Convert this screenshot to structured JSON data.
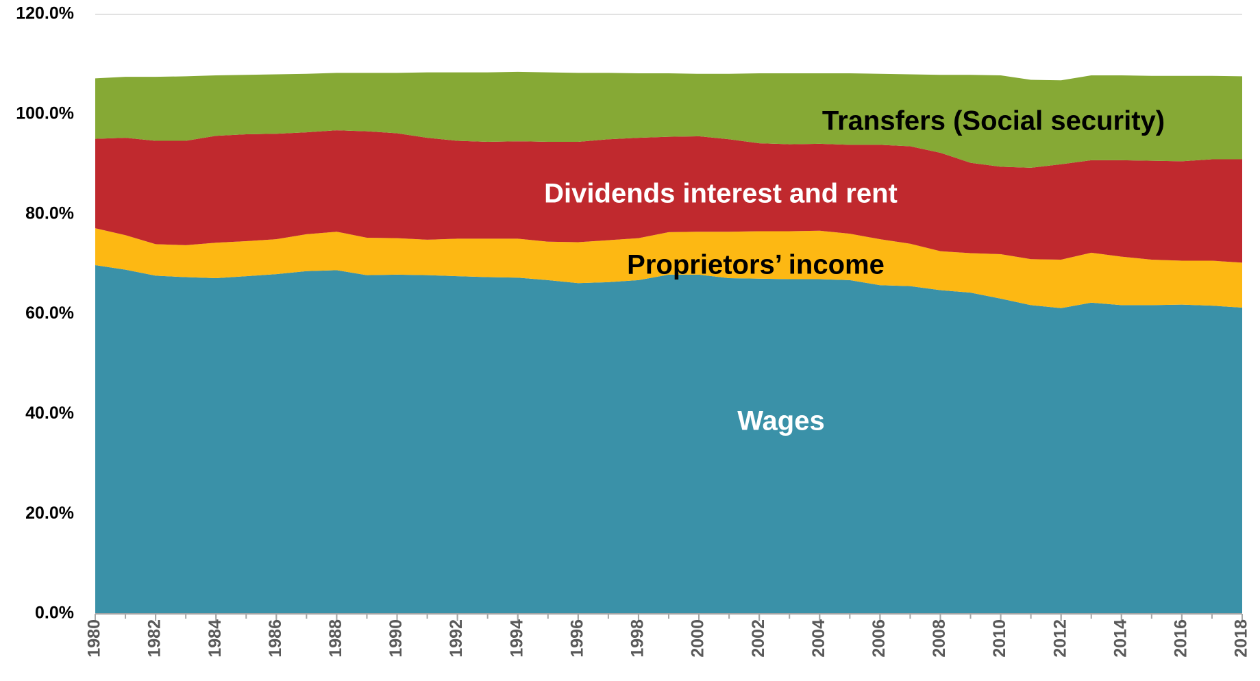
{
  "chart_data": {
    "type": "stacked-area",
    "x": [
      1980,
      1981,
      1982,
      1983,
      1984,
      1985,
      1986,
      1987,
      1988,
      1989,
      1990,
      1991,
      1992,
      1993,
      1994,
      1995,
      1996,
      1997,
      1998,
      1999,
      2000,
      2001,
      2002,
      2003,
      2004,
      2005,
      2006,
      2007,
      2008,
      2009,
      2010,
      2011,
      2012,
      2013,
      2014,
      2015,
      2016,
      2017,
      2018
    ],
    "series": [
      {
        "name": "Wages",
        "color": "#3a91a8",
        "label_color": "#ffffff",
        "values": [
          69.8,
          68.9,
          67.7,
          67.4,
          67.2,
          67.6,
          68.0,
          68.6,
          68.8,
          67.8,
          67.9,
          67.8,
          67.6,
          67.4,
          67.3,
          66.8,
          66.2,
          66.4,
          66.8,
          67.9,
          67.9,
          67.2,
          67.1,
          67.0,
          67.0,
          66.8,
          65.8,
          65.6,
          64.8,
          64.3,
          63.1,
          61.8,
          61.2,
          62.3,
          61.8,
          61.8,
          61.9,
          61.7,
          61.3
        ]
      },
      {
        "name": "Proprietors’ income",
        "color": "#fdb813",
        "label_color": "#000000",
        "values": [
          7.4,
          6.9,
          6.3,
          6.4,
          7.1,
          7.0,
          7.0,
          7.4,
          7.7,
          7.5,
          7.3,
          7.1,
          7.5,
          7.7,
          7.8,
          7.7,
          8.2,
          8.4,
          8.4,
          8.5,
          8.6,
          9.3,
          9.5,
          9.6,
          9.7,
          9.3,
          9.2,
          8.5,
          7.8,
          7.9,
          8.9,
          9.2,
          9.7,
          10.0,
          9.7,
          9.1,
          8.8,
          9.0,
          9.0
        ]
      },
      {
        "name": "Dividends interest and rent",
        "color": "#c0292e",
        "label_color": "#ffffff",
        "values": [
          17.9,
          19.5,
          20.7,
          20.9,
          21.4,
          21.4,
          21.1,
          20.4,
          20.3,
          21.3,
          21.0,
          20.4,
          19.6,
          19.4,
          19.5,
          20.0,
          20.1,
          20.2,
          20.1,
          19.1,
          19.1,
          18.5,
          17.6,
          17.4,
          17.4,
          17.8,
          18.9,
          19.5,
          19.7,
          18.1,
          17.5,
          18.3,
          19.1,
          18.5,
          19.3,
          19.8,
          19.9,
          20.3,
          20.7
        ]
      },
      {
        "name": "Transfers (Social security)",
        "color": "#86a935",
        "label_color": "#000000",
        "values": [
          12.1,
          12.2,
          12.8,
          12.9,
          12.1,
          11.9,
          11.9,
          11.7,
          11.5,
          11.7,
          12.1,
          13.1,
          13.7,
          13.9,
          13.9,
          13.9,
          13.8,
          13.3,
          12.9,
          12.7,
          12.5,
          13.1,
          14.0,
          14.2,
          14.1,
          14.3,
          14.2,
          14.4,
          15.6,
          17.6,
          18.3,
          17.6,
          16.8,
          17.0,
          17.0,
          17.0,
          17.1,
          16.7,
          16.6
        ]
      }
    ],
    "xlim": [
      1980,
      2018
    ],
    "xticks": [
      1980,
      1982,
      1984,
      1986,
      1988,
      1990,
      1992,
      1994,
      1996,
      1998,
      2000,
      2002,
      2004,
      2006,
      2008,
      2010,
      2012,
      2014,
      2016,
      2018
    ],
    "ylim": [
      0,
      120
    ],
    "yticks": [
      {
        "value": 0,
        "label": "0.0%"
      },
      {
        "value": 20,
        "label": "20.0%"
      },
      {
        "value": 40,
        "label": "40.0%"
      },
      {
        "value": 60,
        "label": "60.0%"
      },
      {
        "value": 80,
        "label": "80.0%"
      },
      {
        "value": 100,
        "label": "100.0%"
      },
      {
        "value": 120,
        "label": "120.0%"
      }
    ],
    "grid": true
  }
}
